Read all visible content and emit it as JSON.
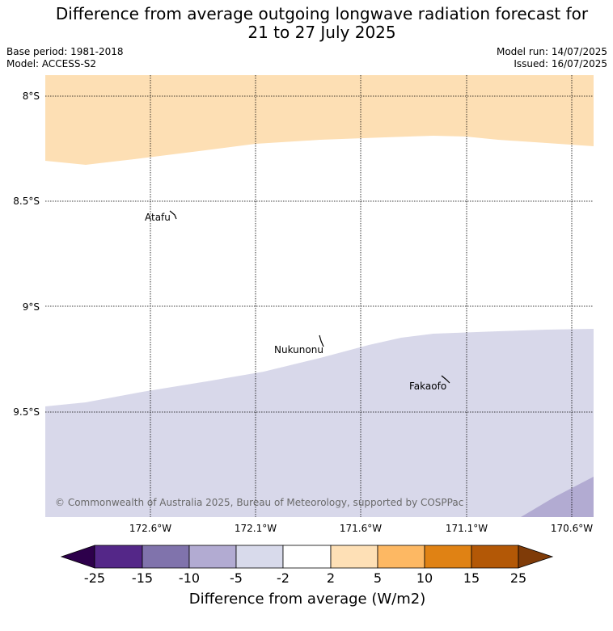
{
  "header": {
    "title_line1": "Difference from average outgoing longwave radiation forecast for",
    "title_line2": "21 to 27 July 2025",
    "base_period": "Base period: 1981-2018",
    "model": "Model: ACCESS-S2",
    "model_run": "Model run: 14/07/2025",
    "issued": "Issued: 16/07/2025"
  },
  "map": {
    "lat_labels": [
      "8°S",
      "8.5°S",
      "9°S",
      "9.5°S"
    ],
    "lon_labels": [
      "172.6°W",
      "172.1°W",
      "171.6°W",
      "171.1°W",
      "170.6°W"
    ],
    "places": [
      "Atafu",
      "Nukunonu",
      "Fakaofo"
    ],
    "copyright": "© Commonwealth of Australia 2025, Bureau of Meteorology, supported by COSPPac",
    "fills": {
      "light_orange": "#fddfb4",
      "light_purple": "#d8d8ea",
      "mid_purple": "#b2abd2"
    }
  },
  "colorbar": {
    "ticks": [
      "-25",
      "-15",
      "-10",
      "-5",
      "-2",
      "2",
      "5",
      "10",
      "15",
      "25"
    ],
    "colors": [
      "#2d004b",
      "#542788",
      "#8073ac",
      "#b2abd2",
      "#d8daeb",
      "#ffffff",
      "#fee0b6",
      "#fdb863",
      "#e08214",
      "#b35806",
      "#7f3b08"
    ],
    "label": "Difference from average (W/m2)"
  }
}
